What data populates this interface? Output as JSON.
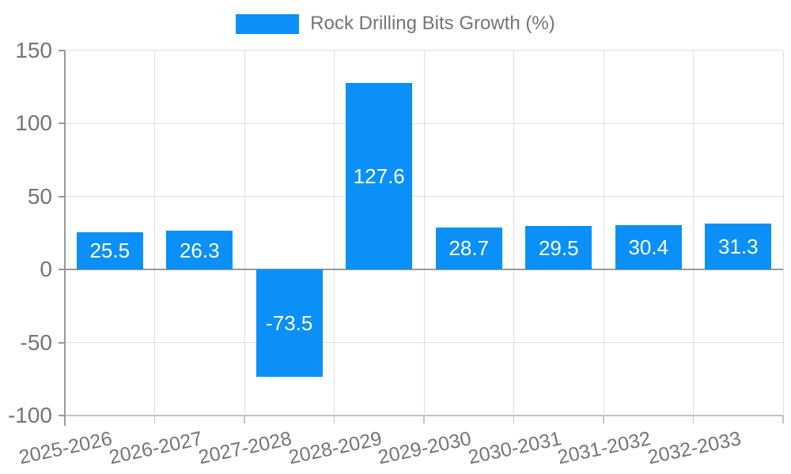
{
  "legend": {
    "label": "Rock Drilling Bits Growth (%)"
  },
  "chart_data": {
    "type": "bar",
    "title": "Rock Drilling Bits Growth (%)",
    "categories": [
      "2025-2026",
      "2026-2027",
      "2027-2028",
      "2028-2029",
      "2029-2030",
      "2030-2031",
      "2031-2032",
      "2032-2033"
    ],
    "series": [
      {
        "name": "Rock Drilling Bits Growth (%)",
        "values": [
          25.5,
          26.3,
          -73.5,
          127.6,
          28.7,
          29.5,
          30.4,
          31.3
        ]
      }
    ],
    "value_labels": [
      "25.5",
      "26.3",
      "-73.5",
      "127.6",
      "28.7",
      "29.5",
      "30.4",
      "31.3"
    ],
    "xlabel": "",
    "ylabel": "",
    "ylim": [
      -100,
      150
    ],
    "yticks": [
      150,
      100,
      50,
      0,
      -50,
      -100
    ],
    "ytick_labels": [
      "150",
      "100",
      "50",
      "0",
      "-50",
      "-100"
    ],
    "grid": true,
    "legend_position": "top-center",
    "colors": {
      "bar": "#0a90f8",
      "bar_label": "#ffffff",
      "axis_text": "#757575",
      "grid_line": "#e0e0e0",
      "axis_line": "#999999",
      "x_axis_line": "#c4c4c4"
    }
  }
}
